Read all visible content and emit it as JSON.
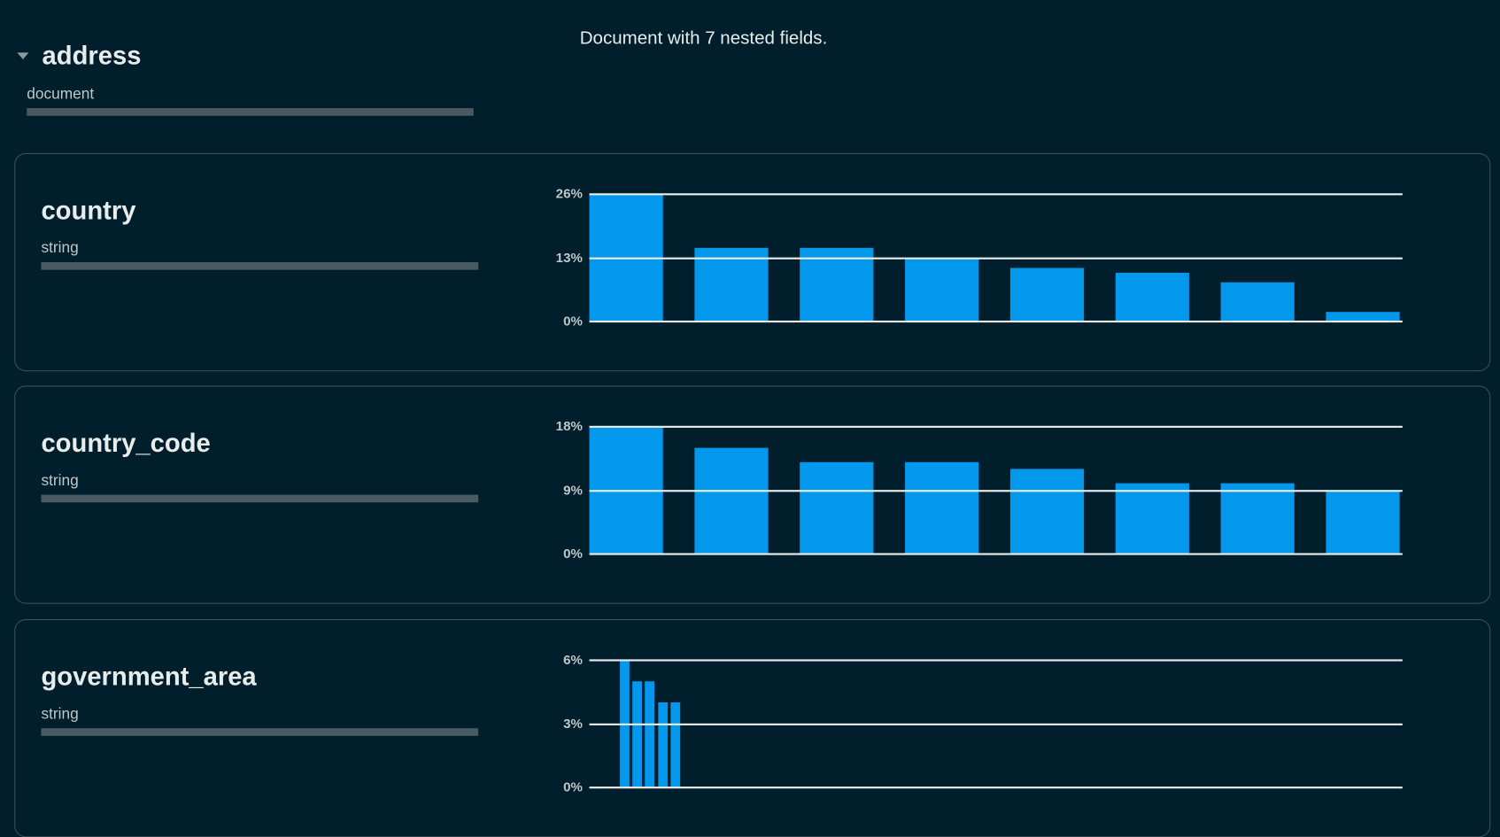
{
  "summary": "Document with 7 nested fields.",
  "parent": {
    "name": "address",
    "type": "document",
    "expanded": true,
    "icon": "caret-down-icon"
  },
  "colors": {
    "background": "#001e2b",
    "bar": "#0498ec",
    "card_border": "#3d4f58"
  },
  "fields": [
    {
      "name": "country",
      "type": "string",
      "chart_data": {
        "type": "bar",
        "yticks": [
          "0%",
          "13%",
          "26%"
        ],
        "ylim": [
          0,
          26
        ],
        "values": [
          26,
          15,
          15,
          13,
          11,
          10,
          8,
          2
        ]
      }
    },
    {
      "name": "country_code",
      "type": "string",
      "chart_data": {
        "type": "bar",
        "yticks": [
          "0%",
          "9%",
          "18%"
        ],
        "ylim": [
          0,
          18
        ],
        "values": [
          18,
          15,
          13,
          13,
          12,
          10,
          10,
          9
        ]
      }
    },
    {
      "name": "government_area",
      "type": "string",
      "chart_data": {
        "type": "bar",
        "yticks": [
          "0%",
          "3%",
          "6%"
        ],
        "ylim": [
          0,
          6
        ],
        "values": [
          6,
          5,
          5,
          4,
          4
        ]
      }
    }
  ]
}
